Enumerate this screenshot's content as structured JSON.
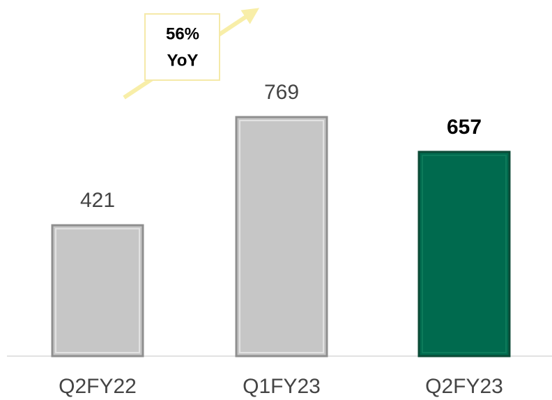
{
  "chart_data": {
    "type": "bar",
    "categories": [
      "Q2FY22",
      "Q1FY23",
      "Q2FY23"
    ],
    "values": [
      421,
      769,
      657
    ],
    "colors": [
      "#c6c6c6",
      "#c6c6c6",
      "#006a4e"
    ],
    "annotation": [
      "56%",
      "YoY"
    ]
  }
}
